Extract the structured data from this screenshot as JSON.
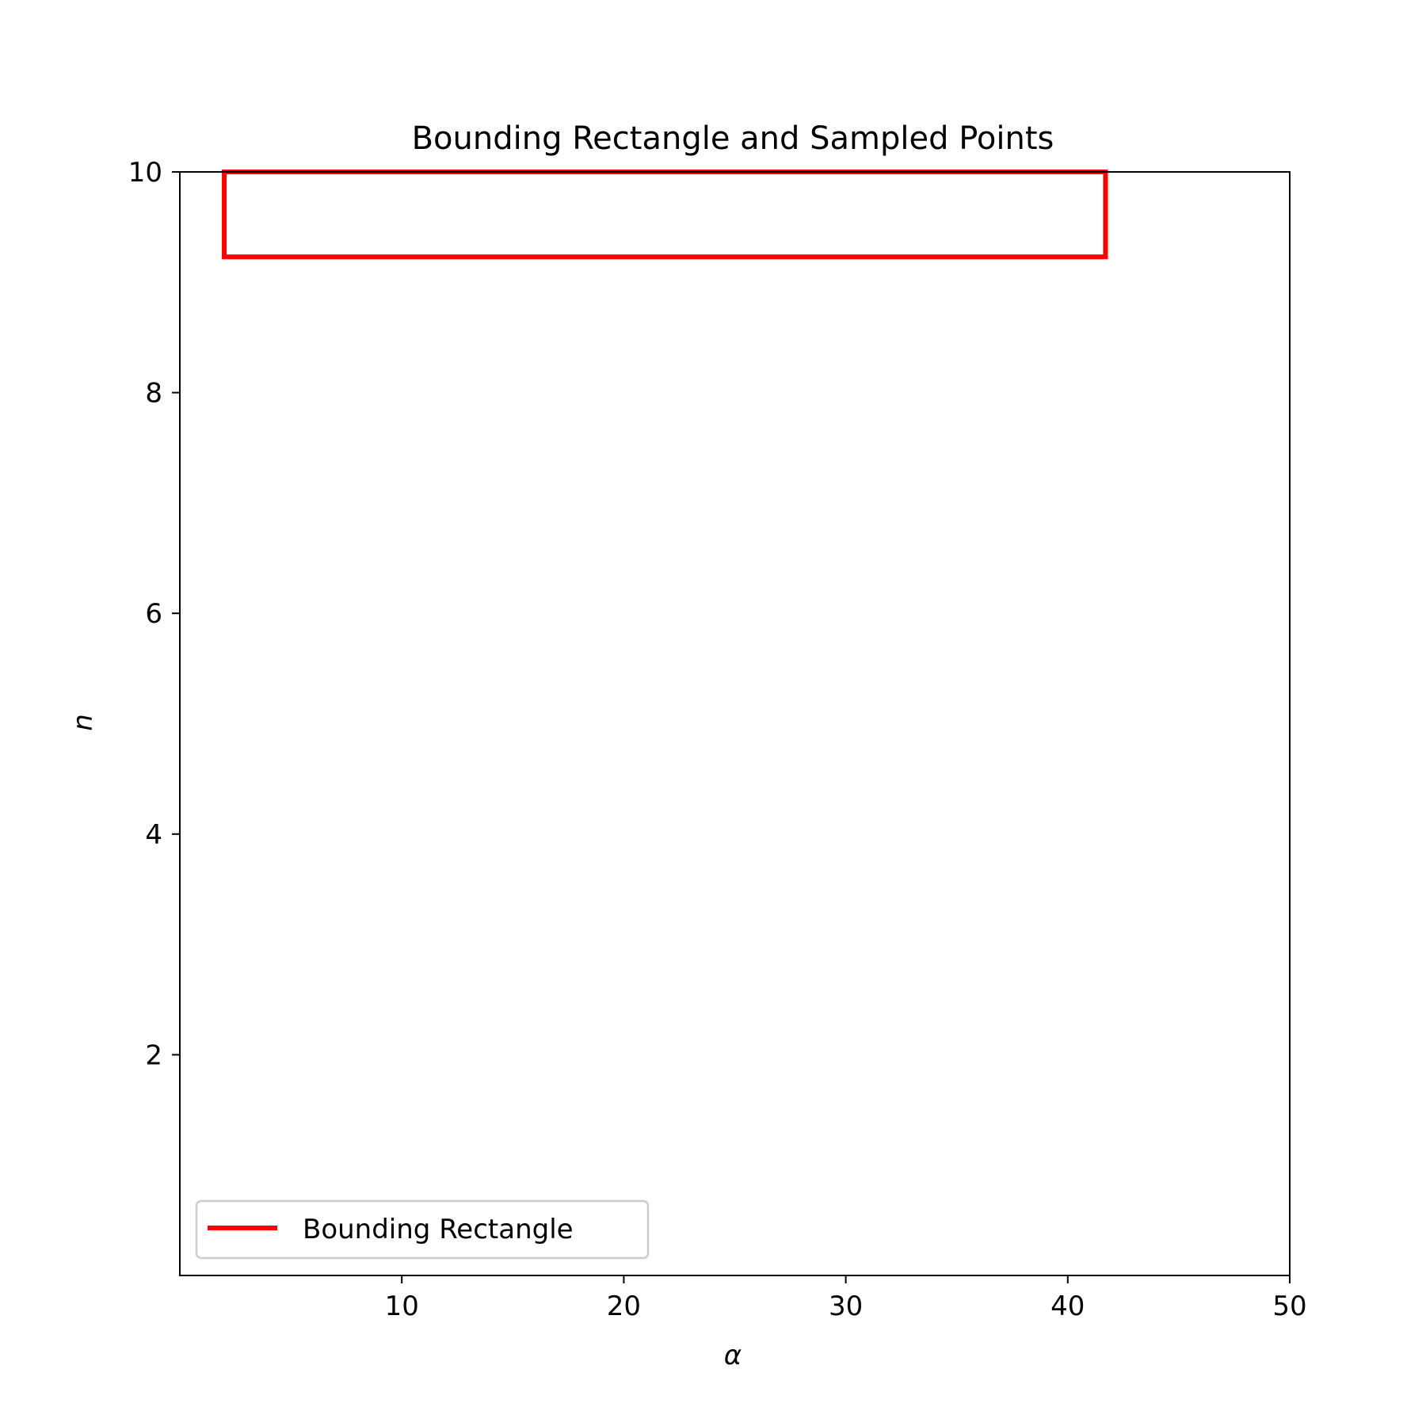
{
  "chart_data": {
    "type": "line",
    "title": "Bounding Rectangle and Sampled Points",
    "xlabel": "α",
    "ylabel": "n",
    "xlim": [
      0,
      50
    ],
    "ylim": [
      0,
      10
    ],
    "xticks": [
      10,
      20,
      30,
      40,
      50
    ],
    "yticks": [
      2,
      4,
      6,
      8,
      10
    ],
    "grid": false,
    "legend": {
      "position": "lower-left",
      "entries": [
        {
          "label": "Bounding Rectangle",
          "color": "#ff0000"
        }
      ]
    },
    "series": [
      {
        "name": "Bounding Rectangle",
        "color": "#ff0000",
        "x": [
          2.0,
          41.7,
          41.7,
          2.0,
          2.0
        ],
        "y": [
          9.23,
          9.23,
          10.0,
          10.0,
          9.23
        ]
      }
    ]
  }
}
